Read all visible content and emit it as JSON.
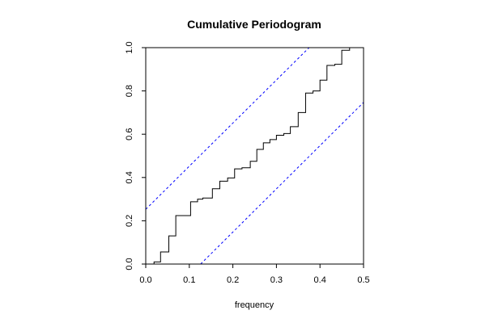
{
  "chart_data": {
    "type": "line",
    "title": "Cumulative Periodogram",
    "xlabel": "frequency",
    "ylabel": "",
    "xlim": [
      0,
      0.5
    ],
    "ylim": [
      0,
      1
    ],
    "xticks": [
      "0.0",
      "0.1",
      "0.2",
      "0.3",
      "0.4",
      "0.5"
    ],
    "yticks": [
      "0.0",
      "0.2",
      "0.4",
      "0.6",
      "0.8",
      "1.0"
    ],
    "grid": false,
    "legend": "none",
    "series": [
      {
        "style": "step",
        "color": "#000000",
        "x": [
          0.0,
          0.019,
          0.034,
          0.053,
          0.069,
          0.103,
          0.119,
          0.131,
          0.153,
          0.17,
          0.188,
          0.204,
          0.221,
          0.24,
          0.255,
          0.27,
          0.285,
          0.3,
          0.317,
          0.332,
          0.35,
          0.367,
          0.384,
          0.4,
          0.416,
          0.434,
          0.45,
          0.468,
          0.48
        ],
        "y": [
          0.0,
          0.01,
          0.056,
          0.13,
          0.224,
          0.288,
          0.3,
          0.305,
          0.348,
          0.383,
          0.398,
          0.44,
          0.445,
          0.475,
          0.53,
          0.56,
          0.575,
          0.595,
          0.603,
          0.635,
          0.7,
          0.79,
          0.8,
          0.85,
          0.918,
          0.923,
          0.988,
          1.0,
          1.0
        ]
      },
      {
        "style": "dashed",
        "color": "#0000ff",
        "x": [
          0.0,
          0.375
        ],
        "y": [
          0.253,
          1.0
        ]
      },
      {
        "style": "dashed",
        "color": "#0000ff",
        "x": [
          0.126,
          0.5
        ],
        "y": [
          0.0,
          0.747
        ]
      }
    ]
  }
}
